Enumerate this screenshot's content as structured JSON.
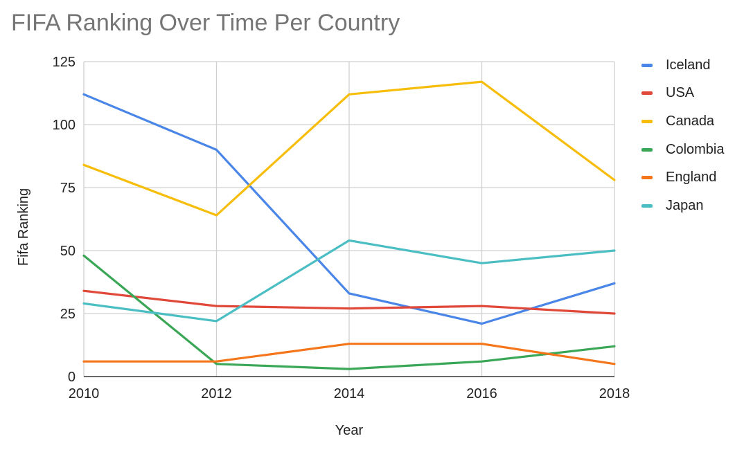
{
  "chart_data": {
    "type": "line",
    "title": "FIFA Ranking Over Time Per Country",
    "xlabel": "Year",
    "ylabel": "Fifa Ranking",
    "x": [
      2010,
      2012,
      2014,
      2016,
      2018
    ],
    "xlim": [
      2010,
      2018
    ],
    "ylim": [
      0,
      125
    ],
    "yticks": [
      0,
      25,
      50,
      75,
      100,
      125
    ],
    "xticks": [
      2010,
      2012,
      2014,
      2016,
      2018
    ],
    "grid": true,
    "legend_position": "right",
    "series": [
      {
        "name": "Iceland",
        "color": "#4a86e8",
        "values": [
          112,
          90,
          33,
          21,
          37
        ]
      },
      {
        "name": "USA",
        "color": "#e0483a",
        "values": [
          34,
          28,
          27,
          28,
          25
        ]
      },
      {
        "name": "Canada",
        "color": "#f7bd0b",
        "values": [
          84,
          64,
          112,
          117,
          78
        ]
      },
      {
        "name": "Colombia",
        "color": "#3aa757",
        "values": [
          48,
          5,
          3,
          6,
          12
        ]
      },
      {
        "name": "England",
        "color": "#f5761a",
        "values": [
          6,
          6,
          13,
          13,
          5
        ]
      },
      {
        "name": "Japan",
        "color": "#4bbec4",
        "values": [
          29,
          22,
          54,
          45,
          50
        ]
      }
    ]
  }
}
